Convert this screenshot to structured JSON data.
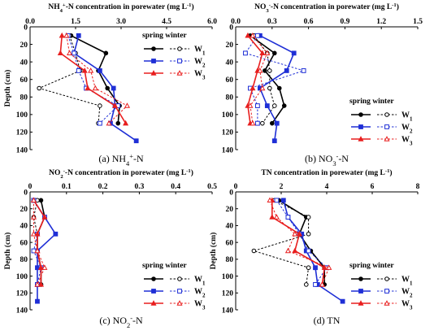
{
  "figure": {
    "legend_header": "spring winter",
    "colors": {
      "W1": "#000000",
      "W2": "#1f2fd6",
      "W3": "#e81e1e"
    }
  },
  "chart_data": [
    {
      "id": "a",
      "type": "line",
      "title": "NH4+-N concentration in porewater (mg L-1)",
      "title_parts": [
        "NH",
        "4",
        "+",
        "-N concentration in porewater (mg L",
        "-1",
        ")"
      ],
      "caption_parts": [
        "(a) NH",
        "4",
        "+",
        "-N"
      ],
      "x_ticks": [
        "0.0",
        "1.5",
        "3.0",
        "4.5",
        "6.0"
      ],
      "xlim": [
        0,
        6.0
      ],
      "ylabel": "Depth (cm)",
      "y_ticks": [
        "0",
        "20",
        "40",
        "60",
        "80",
        "100",
        "120",
        "140"
      ],
      "ylim": [
        0,
        140
      ],
      "legend_placement": "top-right",
      "depth": [
        10,
        30,
        50,
        70,
        90,
        110,
        130
      ],
      "series": [
        {
          "name": "W1",
          "season": "spring",
          "x": [
            1.35,
            2.5,
            2.25,
            2.55,
            2.95,
            2.9,
            null
          ]
        },
        {
          "name": "W1",
          "season": "winter",
          "x": [
            1.3,
            1.5,
            1.65,
            0.3,
            2.3,
            2.25,
            null
          ]
        },
        {
          "name": "W2",
          "season": "spring",
          "x": [
            1.6,
            1.45,
            2.3,
            2.75,
            2.8,
            2.65,
            3.5
          ]
        },
        {
          "name": "W2",
          "season": "winter",
          "x": [
            1.25,
            1.45,
            1.6,
            1.85,
            2.9,
            2.3,
            null
          ]
        },
        {
          "name": "W3",
          "season": "spring",
          "x": [
            1.05,
            1.0,
            1.8,
            1.9,
            2.8,
            3.15,
            null
          ]
        },
        {
          "name": "W3",
          "season": "winter",
          "x": [
            1.2,
            1.3,
            2.0,
            2.15,
            3.2,
            2.6,
            null
          ]
        }
      ]
    },
    {
      "id": "b",
      "type": "line",
      "title": "NO3--N concentration in porewater (mg L-1)",
      "title_parts": [
        "NO",
        "3",
        "-",
        "-N concentration in porewater (mg L",
        "-1",
        ")"
      ],
      "caption_parts": [
        "(b) NO",
        "3",
        "-",
        "-N"
      ],
      "x_ticks": [
        "0.0",
        "0.3",
        "0.6",
        "0.9",
        "1.2",
        "1.5"
      ],
      "xlim": [
        0,
        1.5
      ],
      "ylabel": "",
      "y_ticks": [
        "0",
        "20",
        "40",
        "60",
        "80",
        "100",
        "120",
        "140"
      ],
      "ylim": [
        0,
        140
      ],
      "legend_placement": "right",
      "depth": [
        10,
        30,
        50,
        70,
        90,
        110,
        130
      ],
      "series": [
        {
          "name": "W1",
          "season": "spring",
          "x": [
            0.12,
            0.32,
            0.24,
            0.36,
            0.4,
            0.3,
            null
          ]
        },
        {
          "name": "W1",
          "season": "winter",
          "x": [
            0.15,
            0.26,
            0.28,
            0.28,
            0.32,
            0.22,
            null
          ]
        },
        {
          "name": "W2",
          "season": "spring",
          "x": [
            0.2,
            0.48,
            0.42,
            0.2,
            0.26,
            0.34,
            0.32
          ]
        },
        {
          "name": "W2",
          "season": "winter",
          "x": [
            0.18,
            0.08,
            0.56,
            0.12,
            0.18,
            0.18,
            null
          ]
        },
        {
          "name": "W3",
          "season": "spring",
          "x": [
            0.1,
            0.22,
            0.18,
            0.14,
            0.1,
            0.12,
            null
          ]
        },
        {
          "name": "W3",
          "season": "winter",
          "x": [
            0.14,
            0.26,
            0.2,
            0.22,
            0.12,
            0.14,
            null
          ]
        }
      ]
    },
    {
      "id": "c",
      "type": "line",
      "title": "NO2--N concentration in porewater (mg L-1)",
      "title_parts": [
        "NO",
        "2",
        "-",
        "-N concentration in porewater (mg L",
        "-1",
        ")"
      ],
      "caption_parts": [
        "(c) NO",
        "2",
        "-",
        "-N"
      ],
      "x_ticks": [
        "0",
        "0.1",
        "0.2",
        "0.3",
        "0.4",
        "0.5"
      ],
      "xlim": [
        0,
        0.5
      ],
      "ylabel": "Depth (cm)",
      "y_ticks": [
        "0",
        "20",
        "40",
        "60",
        "80",
        "100",
        "120",
        "140"
      ],
      "ylim": [
        0,
        140
      ],
      "legend_placement": "right",
      "depth": [
        10,
        30,
        50,
        70,
        90,
        110,
        130
      ],
      "series": [
        {
          "name": "W1",
          "season": "spring",
          "x": [
            0.03,
            0.04,
            0.02,
            0.02,
            0.03,
            0.03,
            null
          ]
        },
        {
          "name": "W1",
          "season": "winter",
          "x": [
            0.02,
            0.01,
            0.02,
            0.02,
            0.03,
            0.03,
            null
          ]
        },
        {
          "name": "W2",
          "season": "spring",
          "x": [
            0.01,
            0.04,
            0.07,
            0.02,
            0.02,
            0.02,
            0.02
          ]
        },
        {
          "name": "W2",
          "season": "winter",
          "x": [
            0.01,
            0.04,
            0.02,
            0.01,
            0.03,
            0.02,
            null
          ]
        },
        {
          "name": "W3",
          "season": "spring",
          "x": [
            0.01,
            0.04,
            0.02,
            0.02,
            0.03,
            0.03,
            null
          ]
        },
        {
          "name": "W3",
          "season": "winter",
          "x": [
            0.01,
            0.01,
            0.01,
            0.02,
            0.04,
            0.02,
            null
          ]
        }
      ]
    },
    {
      "id": "d",
      "type": "line",
      "title": "TN concentration in porewater (mg L-1)",
      "title_parts": [
        "TN concentration in porewater (mg L",
        "-1",
        ")"
      ],
      "caption_parts": [
        "(d) TN"
      ],
      "x_ticks": [
        "0",
        "2",
        "4",
        "6",
        "8"
      ],
      "xlim": [
        0,
        8
      ],
      "ylabel": "Depth (cm)",
      "y_ticks": [
        "0",
        "20",
        "40",
        "60",
        "80",
        "100",
        "120",
        "140"
      ],
      "ylim": [
        0,
        140
      ],
      "legend_placement": "bottom-right",
      "depth": [
        10,
        30,
        50,
        70,
        90,
        110,
        130
      ],
      "series": [
        {
          "name": "W1",
          "season": "spring",
          "x": [
            1.9,
            3.1,
            2.8,
            3.3,
            3.9,
            3.9,
            null
          ]
        },
        {
          "name": "W1",
          "season": "winter",
          "x": [
            1.7,
            3.2,
            3.2,
            0.8,
            3.2,
            3.1,
            null
          ]
        },
        {
          "name": "W2",
          "season": "spring",
          "x": [
            2.1,
            2.3,
            2.9,
            3.1,
            3.5,
            3.6,
            4.7
          ]
        },
        {
          "name": "W2",
          "season": "winter",
          "x": [
            1.8,
            2.3,
            2.8,
            3.2,
            4.0,
            3.5,
            null
          ]
        },
        {
          "name": "W3",
          "season": "spring",
          "x": [
            1.6,
            1.6,
            2.8,
            2.6,
            3.9,
            3.8,
            null
          ]
        },
        {
          "name": "W3",
          "season": "winter",
          "x": [
            1.5,
            1.8,
            2.6,
            2.3,
            4.1,
            3.8,
            null
          ]
        }
      ]
    }
  ]
}
